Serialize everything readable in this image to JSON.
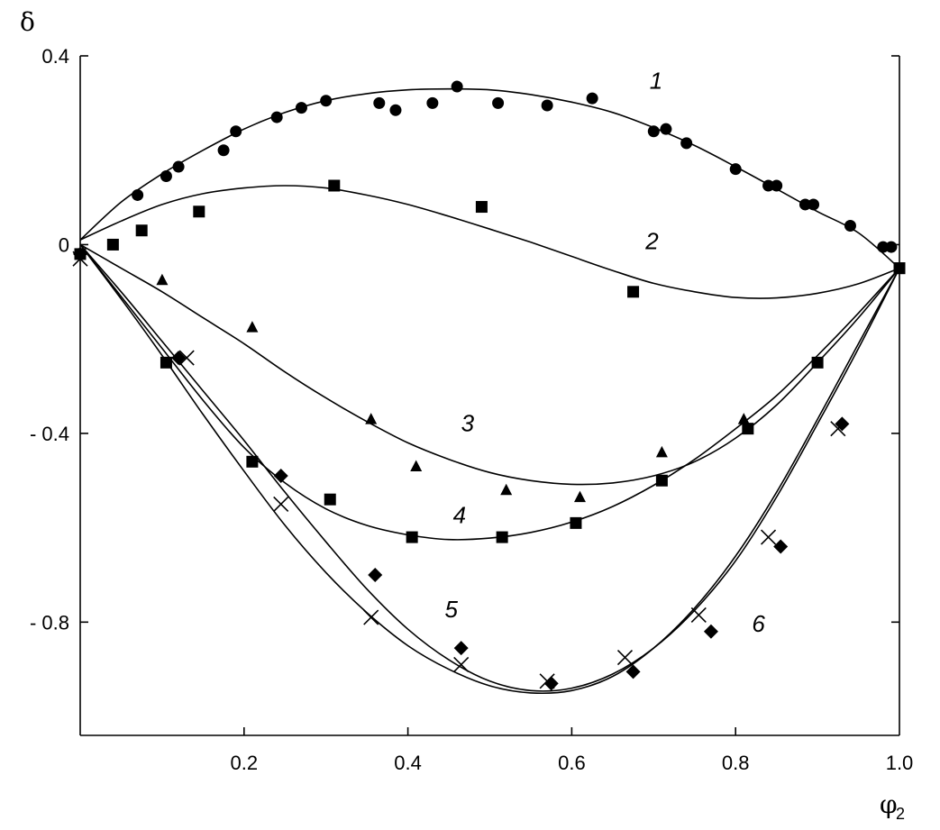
{
  "chart_data": {
    "type": "scatter",
    "title": "",
    "ylabel": "δ",
    "xlabel_main": "φ",
    "xlabel_sub": "2",
    "xlim": [
      0,
      1
    ],
    "ylim": [
      -1.04,
      0.4
    ],
    "x_ticks": [
      {
        "value": 0.2,
        "label": "0.2"
      },
      {
        "value": 0.4,
        "label": "0.4"
      },
      {
        "value": 0.6,
        "label": "0.6"
      },
      {
        "value": 0.8,
        "label": "0.8"
      },
      {
        "value": 1.0,
        "label": "1.0"
      }
    ],
    "y_ticks": [
      {
        "value": 0.4,
        "label": "0.4"
      },
      {
        "value": 0,
        "label": "0"
      },
      {
        "value": -0.4,
        "label": "- 0.4"
      },
      {
        "value": -0.8,
        "label": "- 0.8"
      }
    ],
    "grid": false,
    "series": [
      {
        "label": "1",
        "marker": "circle",
        "label_pos": {
          "x": 0.695,
          "y": 0.33
        },
        "curve": [
          [
            0,
            0.01
          ],
          [
            0.05,
            0.09
          ],
          [
            0.1,
            0.15
          ],
          [
            0.15,
            0.2
          ],
          [
            0.2,
            0.245
          ],
          [
            0.25,
            0.28
          ],
          [
            0.3,
            0.305
          ],
          [
            0.35,
            0.32
          ],
          [
            0.4,
            0.328
          ],
          [
            0.45,
            0.33
          ],
          [
            0.5,
            0.328
          ],
          [
            0.55,
            0.318
          ],
          [
            0.6,
            0.302
          ],
          [
            0.65,
            0.28
          ],
          [
            0.7,
            0.248
          ],
          [
            0.75,
            0.21
          ],
          [
            0.8,
            0.165
          ],
          [
            0.85,
            0.118
          ],
          [
            0.9,
            0.07
          ],
          [
            0.95,
            0.025
          ],
          [
            1.0,
            -0.05
          ]
        ],
        "points": [
          [
            0.07,
            0.105
          ],
          [
            0.105,
            0.145
          ],
          [
            0.12,
            0.165
          ],
          [
            0.175,
            0.2
          ],
          [
            0.19,
            0.24
          ],
          [
            0.24,
            0.27
          ],
          [
            0.27,
            0.29
          ],
          [
            0.3,
            0.305
          ],
          [
            0.365,
            0.3
          ],
          [
            0.385,
            0.285
          ],
          [
            0.43,
            0.3
          ],
          [
            0.46,
            0.335
          ],
          [
            0.51,
            0.3
          ],
          [
            0.57,
            0.295
          ],
          [
            0.625,
            0.31
          ],
          [
            0.7,
            0.24
          ],
          [
            0.715,
            0.245
          ],
          [
            0.74,
            0.215
          ],
          [
            0.8,
            0.16
          ],
          [
            0.84,
            0.125
          ],
          [
            0.85,
            0.125
          ],
          [
            0.885,
            0.085
          ],
          [
            0.895,
            0.085
          ],
          [
            0.94,
            0.04
          ],
          [
            0.98,
            -0.005
          ],
          [
            0.99,
            -0.005
          ]
        ]
      },
      {
        "label": "2",
        "marker": "square",
        "label_pos": {
          "x": 0.69,
          "y": -0.01
        },
        "curve": [
          [
            0,
            0.01
          ],
          [
            0.05,
            0.05
          ],
          [
            0.1,
            0.085
          ],
          [
            0.15,
            0.108
          ],
          [
            0.2,
            0.12
          ],
          [
            0.25,
            0.125
          ],
          [
            0.3,
            0.12
          ],
          [
            0.35,
            0.105
          ],
          [
            0.4,
            0.085
          ],
          [
            0.45,
            0.06
          ],
          [
            0.5,
            0.033
          ],
          [
            0.55,
            0.005
          ],
          [
            0.6,
            -0.025
          ],
          [
            0.65,
            -0.055
          ],
          [
            0.7,
            -0.082
          ],
          [
            0.75,
            -0.1
          ],
          [
            0.8,
            -0.112
          ],
          [
            0.85,
            -0.113
          ],
          [
            0.9,
            -0.103
          ],
          [
            0.95,
            -0.083
          ],
          [
            1.0,
            -0.05
          ]
        ],
        "points": [
          [
            0.04,
            0.0
          ],
          [
            0.075,
            0.03
          ],
          [
            0.145,
            0.07
          ],
          [
            0.31,
            0.125
          ],
          [
            0.49,
            0.08
          ],
          [
            0.675,
            -0.1
          ],
          [
            1.0,
            -0.05
          ]
        ]
      },
      {
        "label": "3",
        "marker": "triangle",
        "label_pos": {
          "x": 0.465,
          "y": -0.395
        },
        "curve": [
          [
            0,
            0.0
          ],
          [
            0.05,
            -0.05
          ],
          [
            0.1,
            -0.1
          ],
          [
            0.15,
            -0.155
          ],
          [
            0.2,
            -0.21
          ],
          [
            0.25,
            -0.27
          ],
          [
            0.3,
            -0.325
          ],
          [
            0.35,
            -0.375
          ],
          [
            0.4,
            -0.42
          ],
          [
            0.45,
            -0.455
          ],
          [
            0.5,
            -0.483
          ],
          [
            0.55,
            -0.5
          ],
          [
            0.6,
            -0.508
          ],
          [
            0.65,
            -0.505
          ],
          [
            0.7,
            -0.49
          ],
          [
            0.75,
            -0.46
          ],
          [
            0.8,
            -0.41
          ],
          [
            0.85,
            -0.34
          ],
          [
            0.9,
            -0.25
          ],
          [
            0.95,
            -0.155
          ],
          [
            1.0,
            -0.05
          ]
        ],
        "points": [
          [
            0.1,
            -0.075
          ],
          [
            0.21,
            -0.175
          ],
          [
            0.355,
            -0.37
          ],
          [
            0.41,
            -0.47
          ],
          [
            0.52,
            -0.52
          ],
          [
            0.61,
            -0.535
          ],
          [
            0.71,
            -0.44
          ],
          [
            0.81,
            -0.37
          ]
        ]
      },
      {
        "label": "4",
        "marker": "square",
        "label_pos": {
          "x": 0.455,
          "y": -0.59
        },
        "curve": [
          [
            0,
            0.0
          ],
          [
            0.05,
            -0.11
          ],
          [
            0.1,
            -0.22
          ],
          [
            0.15,
            -0.33
          ],
          [
            0.2,
            -0.43
          ],
          [
            0.25,
            -0.505
          ],
          [
            0.3,
            -0.56
          ],
          [
            0.35,
            -0.595
          ],
          [
            0.4,
            -0.615
          ],
          [
            0.45,
            -0.625
          ],
          [
            0.5,
            -0.622
          ],
          [
            0.55,
            -0.61
          ],
          [
            0.6,
            -0.588
          ],
          [
            0.65,
            -0.555
          ],
          [
            0.7,
            -0.51
          ],
          [
            0.75,
            -0.455
          ],
          [
            0.8,
            -0.39
          ],
          [
            0.85,
            -0.32
          ],
          [
            0.9,
            -0.235
          ],
          [
            0.95,
            -0.145
          ],
          [
            1.0,
            -0.05
          ]
        ],
        "points": [
          [
            0.0,
            -0.02
          ],
          [
            0.105,
            -0.25
          ],
          [
            0.21,
            -0.46
          ],
          [
            0.305,
            -0.54
          ],
          [
            0.405,
            -0.62
          ],
          [
            0.515,
            -0.62
          ],
          [
            0.605,
            -0.59
          ],
          [
            0.71,
            -0.5
          ],
          [
            0.815,
            -0.39
          ],
          [
            0.9,
            -0.25
          ],
          [
            1.0,
            -0.05
          ]
        ]
      },
      {
        "label": "5",
        "marker": "cross",
        "label_pos": {
          "x": 0.445,
          "y": -0.79
        },
        "curve": [
          [
            0,
            0.0
          ],
          [
            0.05,
            -0.115
          ],
          [
            0.1,
            -0.235
          ],
          [
            0.15,
            -0.36
          ],
          [
            0.2,
            -0.48
          ],
          [
            0.25,
            -0.595
          ],
          [
            0.3,
            -0.695
          ],
          [
            0.35,
            -0.78
          ],
          [
            0.4,
            -0.85
          ],
          [
            0.45,
            -0.9
          ],
          [
            0.5,
            -0.935
          ],
          [
            0.55,
            -0.95
          ],
          [
            0.6,
            -0.945
          ],
          [
            0.65,
            -0.915
          ],
          [
            0.7,
            -0.855
          ],
          [
            0.75,
            -0.77
          ],
          [
            0.8,
            -0.66
          ],
          [
            0.85,
            -0.525
          ],
          [
            0.9,
            -0.37
          ],
          [
            0.95,
            -0.21
          ],
          [
            1.0,
            -0.05
          ]
        ],
        "points": [
          [
            0.0,
            -0.03
          ],
          [
            0.13,
            -0.24
          ],
          [
            0.245,
            -0.55
          ],
          [
            0.355,
            -0.79
          ],
          [
            0.465,
            -0.89
          ],
          [
            0.57,
            -0.925
          ],
          [
            0.665,
            -0.875
          ],
          [
            0.755,
            -0.785
          ],
          [
            0.84,
            -0.62
          ],
          [
            0.925,
            -0.39
          ]
        ]
      },
      {
        "label": "6",
        "marker": "diamond",
        "label_pos": {
          "x": 0.82,
          "y": -0.82
        },
        "curve": [
          [
            0,
            0.0
          ],
          [
            0.05,
            -0.1
          ],
          [
            0.1,
            -0.205
          ],
          [
            0.15,
            -0.31
          ],
          [
            0.2,
            -0.415
          ],
          [
            0.25,
            -0.525
          ],
          [
            0.3,
            -0.63
          ],
          [
            0.35,
            -0.73
          ],
          [
            0.4,
            -0.815
          ],
          [
            0.45,
            -0.88
          ],
          [
            0.5,
            -0.925
          ],
          [
            0.55,
            -0.945
          ],
          [
            0.6,
            -0.94
          ],
          [
            0.65,
            -0.91
          ],
          [
            0.7,
            -0.855
          ],
          [
            0.75,
            -0.775
          ],
          [
            0.8,
            -0.67
          ],
          [
            0.85,
            -0.535
          ],
          [
            0.9,
            -0.38
          ],
          [
            0.95,
            -0.22
          ],
          [
            1.0,
            -0.05
          ]
        ],
        "points": [
          [
            0.0,
            -0.02
          ],
          [
            0.12,
            -0.24
          ],
          [
            0.245,
            -0.49
          ],
          [
            0.36,
            -0.7
          ],
          [
            0.465,
            -0.855
          ],
          [
            0.575,
            -0.93
          ],
          [
            0.675,
            -0.905
          ],
          [
            0.77,
            -0.82
          ],
          [
            0.855,
            -0.64
          ],
          [
            0.93,
            -0.38
          ]
        ]
      }
    ]
  }
}
